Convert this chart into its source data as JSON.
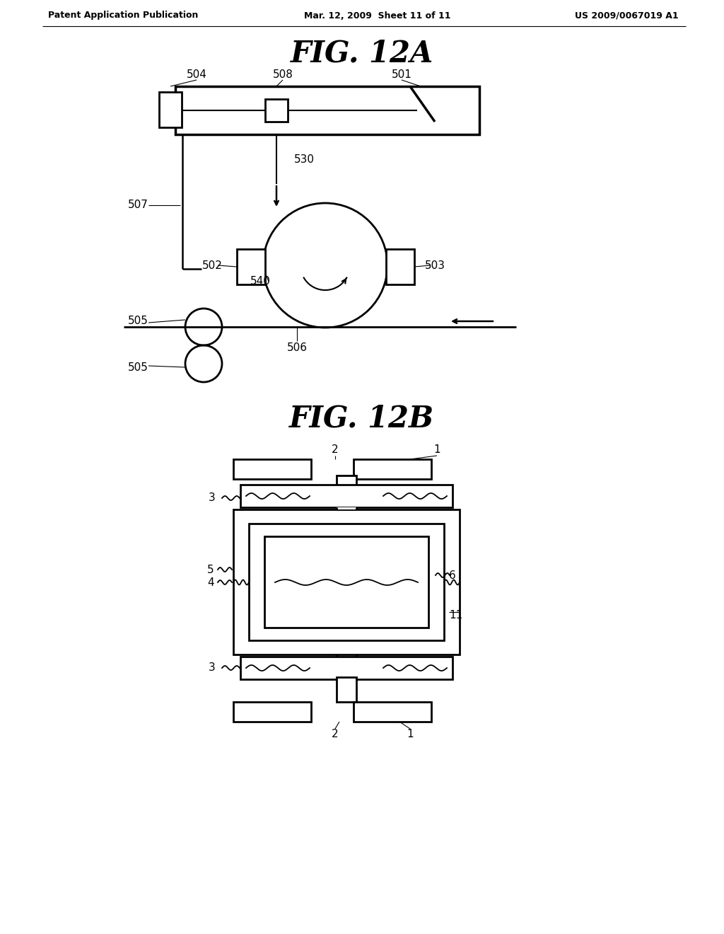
{
  "bg_color": "#ffffff",
  "header_left": "Patent Application Publication",
  "header_mid": "Mar. 12, 2009  Sheet 11 of 11",
  "header_right": "US 2009/0067019 A1",
  "fig12a_title": "FIG. 12A",
  "fig12b_title": "FIG. 12B",
  "line_color": "#000000",
  "text_color": "#000000"
}
